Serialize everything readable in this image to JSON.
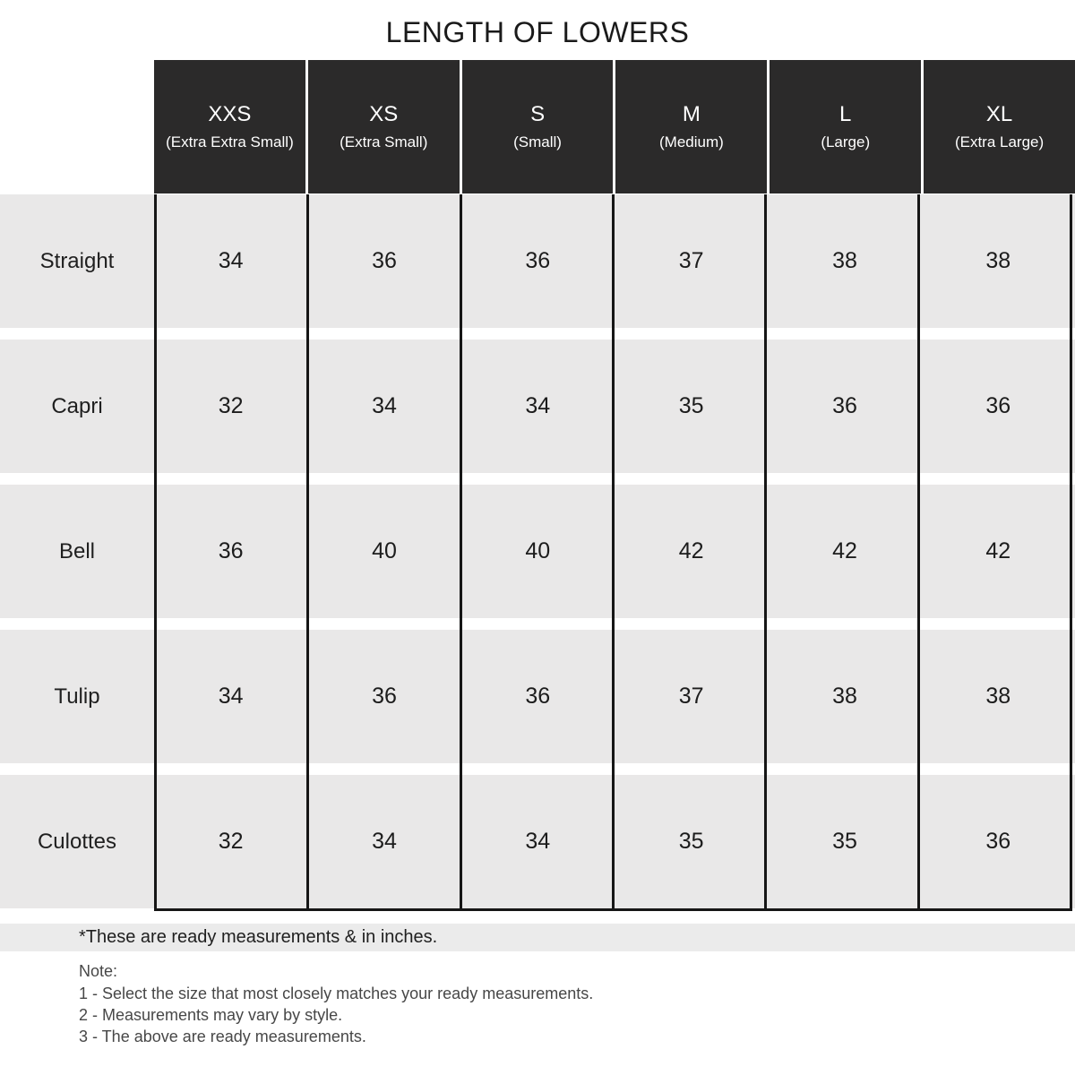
{
  "title": "LENGTH OF LOWERS",
  "table": {
    "columns": [
      {
        "size": "XXS",
        "label": "(Extra Extra Small)"
      },
      {
        "size": "XS",
        "label": "(Extra Small)"
      },
      {
        "size": "S",
        "label": "(Small)"
      },
      {
        "size": "M",
        "label": "(Medium)"
      },
      {
        "size": "L",
        "label": "(Large)"
      },
      {
        "size": "XL",
        "label": "(Extra Large)"
      }
    ],
    "rows": [
      {
        "style": "Straight",
        "values": [
          34,
          36,
          36,
          37,
          38,
          38
        ]
      },
      {
        "style": "Capri",
        "values": [
          32,
          34,
          34,
          35,
          36,
          36
        ]
      },
      {
        "style": "Bell",
        "values": [
          36,
          40,
          40,
          42,
          42,
          42
        ]
      },
      {
        "style": "Tulip",
        "values": [
          34,
          36,
          36,
          37,
          38,
          38
        ]
      },
      {
        "style": "Culottes",
        "values": [
          32,
          34,
          34,
          35,
          35,
          36
        ]
      }
    ],
    "units_note": "inches"
  },
  "footnote": "*These are ready measurements & in inches.",
  "notes": {
    "heading": "Note:",
    "items": [
      "1 - Select the size that most closely matches your ready measurements.",
      "2 - Measurements may vary by style.",
      "3 - The above are ready measurements."
    ]
  },
  "colors": {
    "header_bg": "#2b2a2a",
    "header_text": "#ffffff",
    "row_bg": "#e9e8e8",
    "grid_line": "#161616",
    "footnote_band_bg": "#ebebeb",
    "note_text": "#474747"
  }
}
